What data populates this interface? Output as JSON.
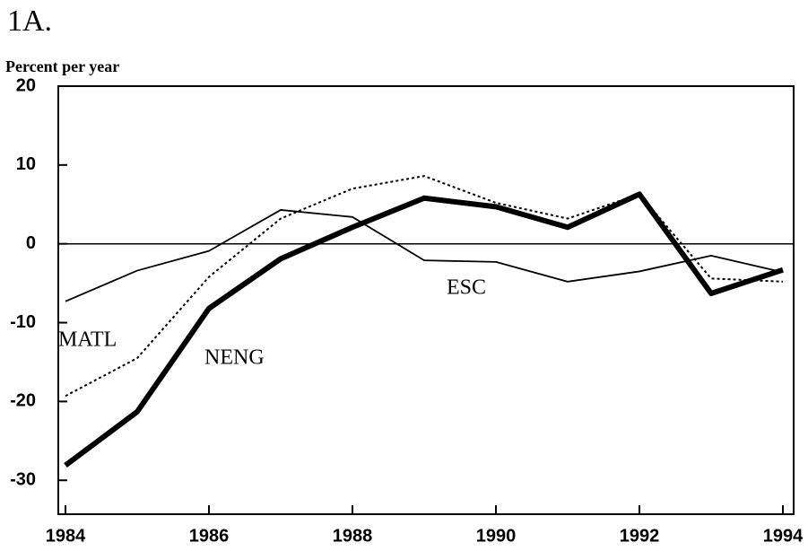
{
  "chart_data": {
    "type": "line",
    "title": "1A.",
    "y_label": "Percent per year",
    "x": [
      1984,
      1985,
      1986,
      1987,
      1988,
      1989,
      1990,
      1991,
      1992,
      1993,
      1994
    ],
    "xlim": [
      1983.9,
      1994.15
    ],
    "xticks": [
      1984,
      1986,
      1988,
      1990,
      1992,
      1994
    ],
    "ylim": [
      -34.3,
      20
    ],
    "yticks": [
      -30,
      -20,
      -10,
      0,
      10,
      20
    ],
    "zero_line": true,
    "series": [
      {
        "name": "ESC",
        "color": "#000000",
        "style": "thin",
        "values": [
          -7.3,
          -3.4,
          -0.9,
          4.3,
          3.4,
          -2.1,
          -2.3,
          -4.8,
          -3.5,
          -1.5,
          -3.6
        ]
      },
      {
        "name": "MATL",
        "color": "#000000",
        "style": "dotted",
        "values": [
          -19.3,
          -14.5,
          -4.2,
          3.2,
          7.0,
          8.6,
          5.2,
          3.2,
          6.3,
          -4.4,
          -4.8
        ]
      },
      {
        "name": "NENG",
        "color": "#000000",
        "style": "thick",
        "values": [
          -28.1,
          -21.3,
          -8.2,
          -1.9,
          2.1,
          5.8,
          4.7,
          2.1,
          6.3,
          -6.3,
          -3.3
        ]
      }
    ]
  }
}
